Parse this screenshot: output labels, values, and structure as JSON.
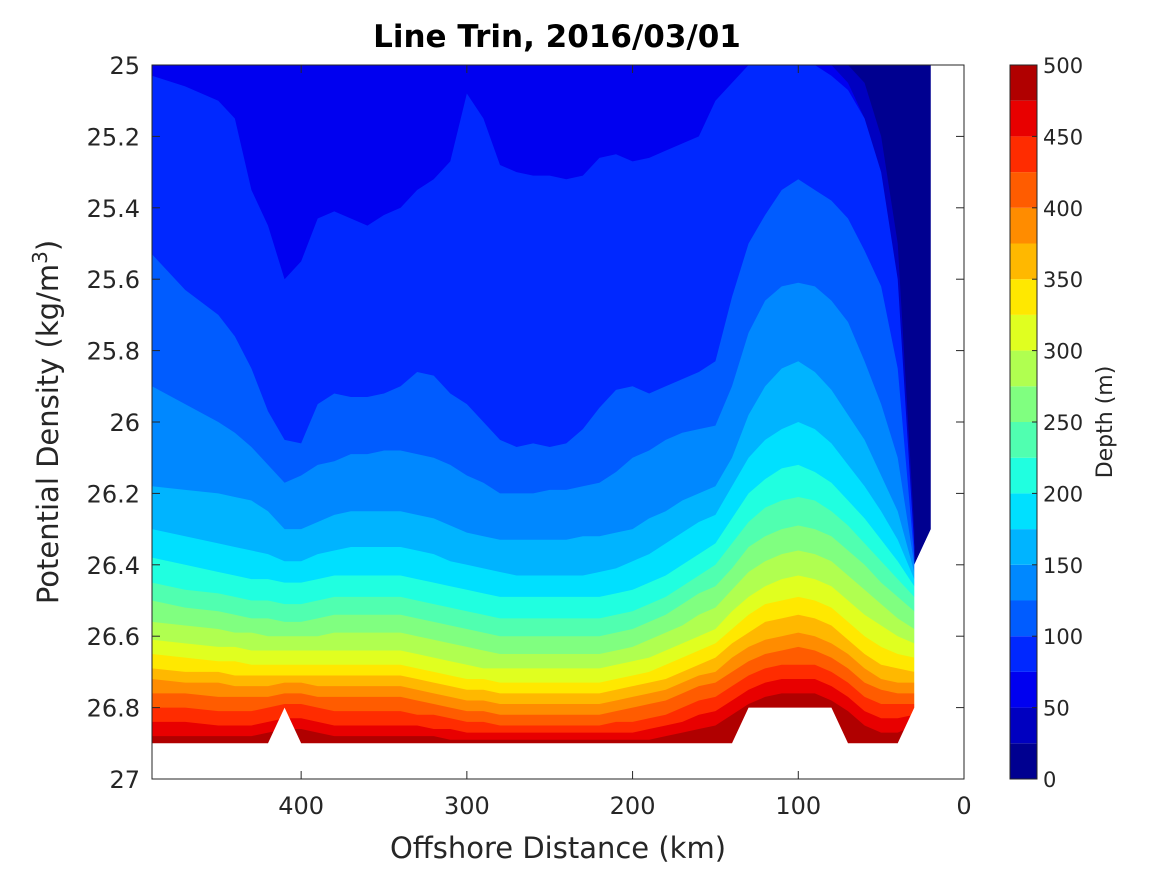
{
  "chart_data": {
    "type": "filled-contour",
    "title": "Line Trin, 2016/03/01",
    "xlabel": "Offshore Distance (km)",
    "ylabel_prefix": "Potential Density (kg/m",
    "ylabel_sup": "3",
    "ylabel_suffix": ")",
    "colorbar_label": "Depth (m)",
    "x_reversed": true,
    "y_reversed": true,
    "xlim": [
      0,
      490
    ],
    "ylim": [
      25,
      27
    ],
    "x_ticks": [
      400,
      300,
      200,
      100,
      0
    ],
    "x_tick_labels": [
      "400",
      "300",
      "200",
      "100",
      "0"
    ],
    "y_ticks": [
      25,
      25.2,
      25.4,
      25.6,
      25.8,
      26,
      26.2,
      26.4,
      26.6,
      26.8,
      27
    ],
    "y_tick_labels": [
      "25",
      "25.2",
      "25.4",
      "25.6",
      "25.8",
      "26",
      "26.2",
      "26.4",
      "26.6",
      "26.8",
      "27"
    ],
    "colorbar_range": [
      0,
      500
    ],
    "colorbar_ticks": [
      0,
      50,
      100,
      150,
      200,
      250,
      300,
      350,
      400,
      450,
      500
    ],
    "colorbar_tick_labels": [
      "0",
      "50",
      "100",
      "150",
      "200",
      "250",
      "300",
      "350",
      "400",
      "450",
      "500"
    ],
    "contour_step": 25,
    "colormap": [
      "#000090",
      "#0000c0",
      "#0000f0",
      "#0028ff",
      "#005cff",
      "#0088ff",
      "#00b4ff",
      "#00e0ff",
      "#20ffe0",
      "#50ffb0",
      "#80ff80",
      "#b0ff50",
      "#e0ff20",
      "#ffe800",
      "#ffb800",
      "#ff8c00",
      "#ff5c00",
      "#ff2c00",
      "#e80000",
      "#b00000"
    ],
    "x_km": [
      490,
      470,
      450,
      440,
      430,
      420,
      410,
      400,
      390,
      380,
      370,
      360,
      350,
      340,
      330,
      320,
      310,
      300,
      290,
      280,
      270,
      260,
      250,
      240,
      230,
      220,
      210,
      200,
      190,
      180,
      170,
      160,
      150,
      140,
      130,
      120,
      110,
      100,
      90,
      80,
      70,
      60,
      50,
      40,
      30
    ],
    "isopycnal_depth_levels": [
      25,
      50,
      75,
      100,
      125,
      150,
      175,
      200,
      225,
      250,
      275,
      300,
      325,
      350,
      375,
      400,
      425,
      450,
      475
    ],
    "isopycnals_sigma": [
      [
        25.0,
        25.0,
        25.0,
        25.0,
        25.0,
        25.0,
        25.0,
        25.0,
        25.0,
        25.0,
        25.0,
        25.0,
        25.0,
        25.0,
        25.0,
        25.0,
        25.0,
        25.0,
        25.0,
        25.0,
        25.0,
        25.0,
        25.0,
        25.0,
        25.0,
        25.0,
        25.0,
        25.0,
        25.0,
        25.0,
        25.0,
        25.0,
        25.0,
        25.0,
        25.0,
        25.0,
        25.0,
        25.0,
        25.0,
        25.0,
        25.0,
        25.05,
        25.2,
        25.5,
        26.3
      ],
      [
        25.0,
        25.0,
        25.0,
        25.0,
        25.0,
        25.0,
        25.0,
        25.0,
        25.0,
        25.0,
        25.0,
        25.0,
        25.0,
        25.0,
        25.0,
        25.0,
        25.0,
        25.0,
        25.0,
        25.0,
        25.0,
        25.0,
        25.0,
        25.0,
        25.0,
        25.0,
        25.0,
        25.0,
        25.0,
        25.0,
        25.0,
        25.0,
        25.0,
        25.0,
        25.0,
        25.0,
        25.0,
        25.0,
        25.0,
        25.0,
        25.05,
        25.15,
        25.35,
        25.7,
        26.35
      ],
      [
        25.03,
        25.06,
        25.1,
        25.15,
        25.35,
        25.45,
        25.6,
        25.55,
        25.43,
        25.41,
        25.43,
        25.45,
        25.42,
        25.4,
        25.35,
        25.32,
        25.27,
        25.08,
        25.15,
        25.28,
        25.3,
        25.31,
        25.31,
        25.32,
        25.31,
        25.26,
        25.25,
        25.27,
        25.26,
        25.24,
        25.22,
        25.2,
        25.1,
        25.05,
        25.0,
        25.0,
        25.0,
        25.0,
        25.0,
        25.03,
        25.07,
        25.15,
        25.3,
        25.6,
        26.35
      ],
      [
        25.53,
        25.63,
        25.7,
        25.76,
        25.85,
        25.97,
        26.05,
        26.06,
        25.95,
        25.92,
        25.93,
        25.93,
        25.92,
        25.9,
        25.86,
        25.87,
        25.92,
        25.95,
        26.0,
        26.05,
        26.07,
        26.06,
        26.07,
        26.06,
        26.02,
        25.96,
        25.91,
        25.9,
        25.92,
        25.9,
        25.88,
        25.86,
        25.83,
        25.65,
        25.5,
        25.42,
        25.35,
        25.32,
        25.35,
        25.38,
        25.43,
        25.52,
        25.62,
        25.85,
        26.38
      ],
      [
        25.9,
        25.95,
        26.0,
        26.03,
        26.07,
        26.12,
        26.17,
        26.15,
        26.12,
        26.11,
        26.09,
        26.09,
        26.08,
        26.08,
        26.09,
        26.1,
        26.12,
        26.15,
        26.17,
        26.2,
        26.2,
        26.2,
        26.19,
        26.19,
        26.18,
        26.17,
        26.14,
        26.1,
        26.08,
        26.05,
        26.03,
        26.02,
        26.01,
        25.9,
        25.75,
        25.66,
        25.62,
        25.61,
        25.62,
        25.66,
        25.72,
        25.83,
        25.95,
        26.1,
        26.4
      ],
      [
        26.18,
        26.19,
        26.2,
        26.21,
        26.22,
        26.25,
        26.3,
        26.3,
        26.28,
        26.26,
        26.25,
        26.25,
        26.25,
        26.25,
        26.26,
        26.27,
        26.29,
        26.31,
        26.32,
        26.33,
        26.33,
        26.33,
        26.33,
        26.33,
        26.32,
        26.32,
        26.31,
        26.3,
        26.27,
        26.25,
        26.22,
        26.2,
        26.18,
        26.1,
        25.98,
        25.9,
        25.85,
        25.83,
        25.86,
        25.91,
        25.98,
        26.05,
        26.15,
        26.25,
        26.42
      ],
      [
        26.3,
        26.32,
        26.34,
        26.35,
        26.36,
        26.37,
        26.39,
        26.39,
        26.37,
        26.36,
        26.35,
        26.35,
        26.35,
        26.35,
        26.36,
        26.37,
        26.39,
        26.4,
        26.41,
        26.42,
        26.43,
        26.43,
        26.43,
        26.43,
        26.43,
        26.42,
        26.41,
        26.39,
        26.37,
        26.34,
        26.31,
        26.28,
        26.26,
        26.18,
        26.1,
        26.05,
        26.02,
        26.0,
        26.02,
        26.06,
        26.12,
        26.18,
        26.25,
        26.33,
        26.44
      ],
      [
        26.38,
        26.4,
        26.42,
        26.43,
        26.44,
        26.44,
        26.45,
        26.45,
        26.44,
        26.43,
        26.43,
        26.43,
        26.43,
        26.43,
        26.44,
        26.45,
        26.46,
        26.47,
        26.48,
        26.49,
        26.49,
        26.49,
        26.49,
        26.49,
        26.49,
        26.49,
        26.48,
        26.47,
        26.45,
        26.43,
        26.4,
        26.37,
        26.34,
        26.27,
        26.2,
        26.16,
        26.13,
        26.12,
        26.14,
        26.17,
        26.22,
        26.27,
        26.33,
        26.39,
        26.46
      ],
      [
        26.45,
        26.47,
        26.48,
        26.49,
        26.5,
        26.5,
        26.51,
        26.51,
        26.5,
        26.49,
        26.49,
        26.49,
        26.49,
        26.49,
        26.5,
        26.51,
        26.52,
        26.53,
        26.54,
        26.55,
        26.55,
        26.55,
        26.55,
        26.55,
        26.55,
        26.55,
        26.54,
        26.53,
        26.51,
        26.49,
        26.46,
        26.43,
        26.4,
        26.34,
        26.28,
        26.24,
        26.22,
        26.21,
        26.22,
        26.25,
        26.29,
        26.34,
        26.39,
        26.44,
        26.49
      ],
      [
        26.5,
        26.52,
        26.53,
        26.54,
        26.55,
        26.55,
        26.56,
        26.56,
        26.55,
        26.54,
        26.54,
        26.54,
        26.54,
        26.54,
        26.55,
        26.56,
        26.57,
        26.58,
        26.59,
        26.6,
        26.6,
        26.6,
        26.6,
        26.6,
        26.6,
        26.6,
        26.59,
        26.58,
        26.56,
        26.54,
        26.51,
        26.48,
        26.46,
        26.41,
        26.35,
        26.32,
        26.3,
        26.29,
        26.3,
        26.32,
        26.36,
        26.4,
        26.45,
        26.49,
        26.53
      ],
      [
        26.56,
        26.57,
        26.58,
        26.59,
        26.59,
        26.6,
        26.6,
        26.6,
        26.6,
        26.59,
        26.59,
        26.59,
        26.59,
        26.59,
        26.6,
        26.61,
        26.62,
        26.63,
        26.64,
        26.65,
        26.65,
        26.65,
        26.65,
        26.65,
        26.65,
        26.65,
        26.64,
        26.63,
        26.61,
        26.59,
        26.57,
        26.54,
        26.52,
        26.47,
        26.42,
        26.39,
        26.37,
        26.36,
        26.37,
        26.39,
        26.43,
        26.47,
        26.51,
        26.55,
        26.58
      ],
      [
        26.61,
        26.62,
        26.63,
        26.63,
        26.64,
        26.64,
        26.64,
        26.64,
        26.64,
        26.64,
        26.64,
        26.64,
        26.64,
        26.64,
        26.65,
        26.66,
        26.67,
        26.68,
        26.69,
        26.69,
        26.69,
        26.69,
        26.69,
        26.69,
        26.69,
        26.69,
        26.68,
        26.67,
        26.66,
        26.64,
        26.62,
        26.6,
        26.58,
        26.53,
        26.49,
        26.46,
        26.44,
        26.43,
        26.44,
        26.46,
        26.5,
        26.54,
        26.57,
        26.6,
        26.62
      ],
      [
        26.65,
        26.66,
        26.67,
        26.67,
        26.68,
        26.68,
        26.68,
        26.68,
        26.68,
        26.68,
        26.68,
        26.68,
        26.68,
        26.68,
        26.69,
        26.7,
        26.71,
        26.72,
        26.72,
        26.73,
        26.73,
        26.73,
        26.73,
        26.73,
        26.73,
        26.73,
        26.72,
        26.71,
        26.7,
        26.68,
        26.66,
        26.64,
        26.62,
        26.58,
        26.54,
        26.51,
        26.5,
        26.49,
        26.5,
        26.52,
        26.56,
        26.6,
        26.63,
        26.65,
        26.66
      ],
      [
        26.69,
        26.7,
        26.7,
        26.71,
        26.71,
        26.71,
        26.71,
        26.71,
        26.71,
        26.71,
        26.71,
        26.71,
        26.71,
        26.71,
        26.72,
        26.73,
        26.74,
        26.75,
        26.75,
        26.76,
        26.76,
        26.76,
        26.76,
        26.76,
        26.76,
        26.76,
        26.75,
        26.74,
        26.73,
        26.72,
        26.7,
        26.68,
        26.66,
        26.62,
        26.59,
        26.56,
        26.55,
        26.54,
        26.55,
        26.57,
        26.61,
        26.65,
        26.68,
        26.69,
        26.7
      ],
      [
        26.72,
        26.73,
        26.73,
        26.74,
        26.74,
        26.74,
        26.73,
        26.73,
        26.74,
        26.74,
        26.74,
        26.74,
        26.74,
        26.74,
        26.75,
        26.76,
        26.77,
        26.78,
        26.78,
        26.79,
        26.79,
        26.79,
        26.79,
        26.79,
        26.79,
        26.79,
        26.78,
        26.77,
        26.76,
        26.75,
        26.73,
        26.71,
        26.7,
        26.66,
        26.63,
        26.61,
        26.6,
        26.59,
        26.6,
        26.62,
        26.65,
        26.69,
        26.72,
        26.73,
        26.73
      ],
      [
        26.76,
        26.76,
        26.77,
        26.77,
        26.77,
        26.77,
        26.76,
        26.76,
        26.77,
        26.77,
        26.77,
        26.77,
        26.77,
        26.77,
        26.78,
        26.79,
        26.8,
        26.81,
        26.81,
        26.82,
        26.82,
        26.82,
        26.82,
        26.82,
        26.82,
        26.82,
        26.81,
        26.8,
        26.79,
        26.78,
        26.76,
        26.74,
        26.73,
        26.7,
        26.67,
        26.65,
        26.64,
        26.63,
        26.64,
        26.66,
        26.69,
        26.73,
        26.75,
        26.76,
        26.76
      ],
      [
        26.8,
        26.8,
        26.81,
        26.81,
        26.81,
        26.8,
        26.79,
        26.79,
        26.8,
        26.81,
        26.81,
        26.81,
        26.81,
        26.81,
        26.82,
        26.82,
        26.83,
        26.84,
        26.84,
        26.85,
        26.85,
        26.85,
        26.85,
        26.85,
        26.85,
        26.85,
        26.84,
        26.84,
        26.83,
        26.82,
        26.8,
        26.78,
        26.77,
        26.74,
        26.71,
        26.69,
        26.68,
        26.68,
        26.68,
        26.7,
        26.73,
        26.77,
        26.79,
        26.79,
        26.79
      ],
      [
        26.84,
        26.84,
        26.85,
        26.85,
        26.85,
        26.84,
        26.83,
        26.83,
        26.84,
        26.85,
        26.85,
        26.85,
        26.85,
        26.85,
        26.85,
        26.86,
        26.86,
        26.87,
        26.87,
        26.87,
        26.87,
        26.87,
        26.87,
        26.87,
        26.87,
        26.87,
        26.87,
        26.87,
        26.86,
        26.85,
        26.84,
        26.82,
        26.81,
        26.78,
        26.75,
        26.73,
        26.72,
        26.72,
        26.72,
        26.74,
        26.77,
        26.81,
        26.83,
        26.83,
        26.82
      ],
      [
        26.88,
        26.88,
        26.88,
        26.88,
        26.88,
        26.87,
        26.86,
        26.86,
        26.87,
        26.88,
        26.88,
        26.88,
        26.88,
        26.88,
        26.88,
        26.88,
        26.89,
        26.89,
        26.89,
        26.89,
        26.89,
        26.89,
        26.89,
        26.89,
        26.89,
        26.89,
        26.89,
        26.89,
        26.89,
        26.88,
        26.87,
        26.86,
        26.85,
        26.82,
        26.79,
        26.77,
        26.76,
        26.76,
        26.76,
        26.78,
        26.81,
        26.85,
        26.87,
        26.87,
        26.85
      ]
    ],
    "bottom_outline": [
      [
        490,
        26.9
      ],
      [
        420,
        26.9
      ],
      [
        410,
        26.8
      ],
      [
        400,
        26.9
      ],
      [
        140,
        26.9
      ],
      [
        130,
        26.8
      ],
      [
        80,
        26.8
      ],
      [
        70,
        26.9
      ],
      [
        40,
        26.9
      ],
      [
        30,
        26.8
      ],
      [
        30,
        26.4
      ],
      [
        20,
        26.3
      ],
      [
        20,
        25.0
      ]
    ]
  }
}
